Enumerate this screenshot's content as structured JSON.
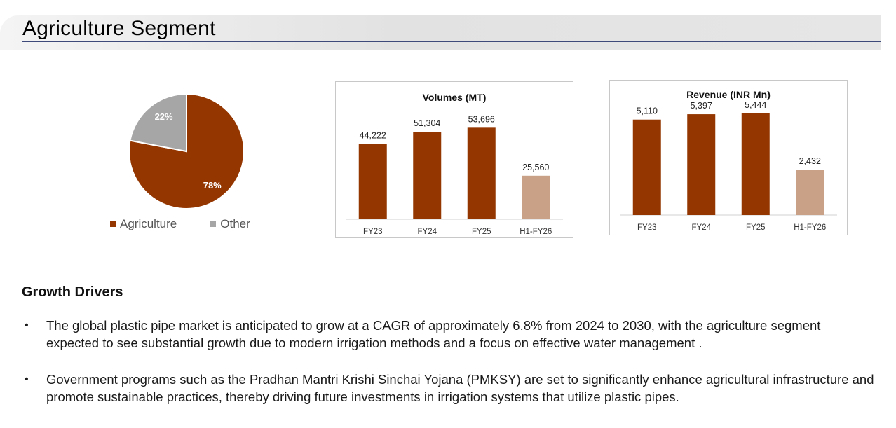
{
  "header": {
    "title": "Agriculture Segment"
  },
  "colors": {
    "agriculture": "#943600",
    "other": "#a6a6a6",
    "highlight": "#c9a186"
  },
  "charts": {
    "pie": {
      "type": "pie",
      "slices": [
        {
          "name": "Agriculture",
          "value": 78,
          "label": "78%"
        },
        {
          "name": "Other",
          "value": 22,
          "label": "22%"
        }
      ]
    },
    "volumes": {
      "type": "bar",
      "title": "Volumes (MT)",
      "categories": [
        "FY23",
        "FY24",
        "FY25",
        "H1-FY26"
      ],
      "values": [
        44222,
        51304,
        53696,
        25560
      ],
      "labels": [
        "44,222",
        "51,304",
        "53,696",
        "25,560"
      ],
      "ylim": [
        0,
        60000
      ]
    },
    "revenue": {
      "type": "bar",
      "title": "Revenue (INR Mn)",
      "categories": [
        "FY23",
        "FY24",
        "FY25",
        "H1-FY26"
      ],
      "values": [
        5110,
        5397,
        5444,
        2432
      ],
      "labels": [
        "5,110",
        "5,397",
        "5,444",
        "2,432"
      ],
      "ylim": [
        0,
        6000
      ]
    }
  },
  "drivers": {
    "heading": "Growth Drivers",
    "bullet_symbol": "•",
    "items": [
      "The global plastic pipe market is anticipated to grow at a CAGR of approximately 6.8% from 2024 to 2030, with the agriculture segment expected to see substantial growth due to modern irrigation methods and a focus on effective water management .",
      "Government programs such as the Pradhan Mantri Krishi Sinchai Yojana (PMKSY) are set to significantly enhance agricultural infrastructure and promote sustainable practices, thereby driving future investments in irrigation systems that utilize plastic pipes."
    ]
  }
}
